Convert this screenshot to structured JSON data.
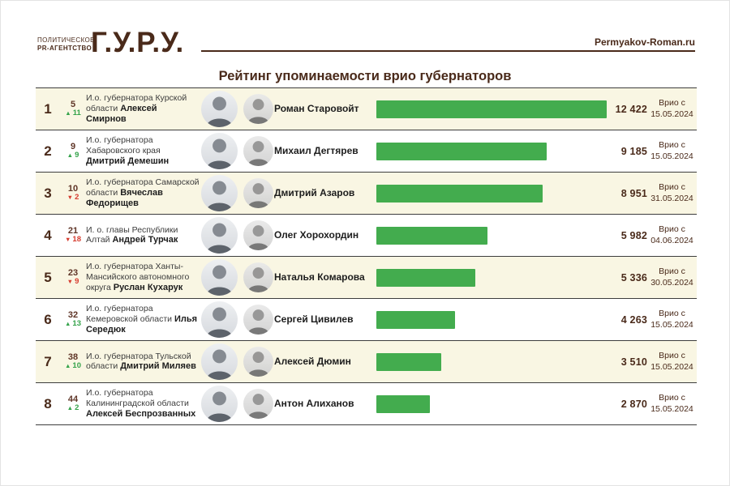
{
  "header": {
    "agency_line1": "ПОЛИТИЧЕСКОЕ",
    "agency_line2": "PR-АГЕНТСТВО",
    "logo_text": "Г.У.Р.У.",
    "site": "Permyakov-Roman.ru"
  },
  "title": "Рейтинг упоминаемости врио губернаторов",
  "colors": {
    "brand_brown": "#4a2a1a",
    "bar_green": "#43ac4e",
    "up_green": "#35a34b",
    "down_red": "#d63c2f",
    "row_alt_yellow": "#f9f6e3",
    "divider": "#3d3d3d"
  },
  "table": {
    "max_value": 12422,
    "date_label": "Врио с",
    "rows": [
      {
        "rank": "1",
        "prev_pos": "5",
        "direction": "up",
        "delta": "11",
        "role": "И.о. губернатора Курской области",
        "name": "Алексей Смирнов",
        "person": "Роман Старовойт",
        "value": 12422,
        "value_label": "12 422",
        "vrio_date": "15.05.2024"
      },
      {
        "rank": "2",
        "prev_pos": "9",
        "direction": "up",
        "delta": "9",
        "role": "И.о. губернатора Хабаровского края",
        "name": "Дмитрий Демешин",
        "person": "Михаил Дегтярев",
        "value": 9185,
        "value_label": "9 185",
        "vrio_date": "15.05.2024"
      },
      {
        "rank": "3",
        "prev_pos": "10",
        "direction": "down",
        "delta": "2",
        "role": "И.о. губернатора Самарской области",
        "name": "Вячеслав Федорищев",
        "person": "Дмитрий Азаров",
        "value": 8951,
        "value_label": "8 951",
        "vrio_date": "31.05.2024"
      },
      {
        "rank": "4",
        "prev_pos": "21",
        "direction": "down",
        "delta": "18",
        "role": "И. о. главы Республики Алтай",
        "name": "Андрей Турчак",
        "person": "Олег Хорохордин",
        "value": 5982,
        "value_label": "5 982",
        "vrio_date": "04.06.2024"
      },
      {
        "rank": "5",
        "prev_pos": "23",
        "direction": "down",
        "delta": "9",
        "role": "И.о. губернатора Ханты-Мансийского автономного округа",
        "name": "Руслан Кухарук",
        "person": "Наталья Комарова",
        "value": 5336,
        "value_label": "5 336",
        "vrio_date": "30.05.2024"
      },
      {
        "rank": "6",
        "prev_pos": "32",
        "direction": "up",
        "delta": "13",
        "role": "И.о. губернатора Кемеровской области",
        "name": "Илья Середюк",
        "person": "Сергей Цивилев",
        "value": 4263,
        "value_label": "4 263",
        "vrio_date": "15.05.2024"
      },
      {
        "rank": "7",
        "prev_pos": "38",
        "direction": "up",
        "delta": "10",
        "role": "И.о. губернатора Тульской области",
        "name": "Дмитрий Миляев",
        "person": "Алексей Дюмин",
        "value": 3510,
        "value_label": "3 510",
        "vrio_date": "15.05.2024"
      },
      {
        "rank": "8",
        "prev_pos": "44",
        "direction": "up",
        "delta": "2",
        "role": "И.о. губернатора Калининградской области",
        "name": "Алексей Беспрозванных",
        "person": "Антон Алиханов",
        "value": 2870,
        "value_label": "2 870",
        "vrio_date": "15.05.2024"
      }
    ]
  },
  "chart_data": {
    "type": "bar",
    "orientation": "horizontal",
    "title": "Рейтинг упоминаемости врио губернаторов",
    "categories": [
      "Роман Старовойт",
      "Михаил Дегтярев",
      "Дмитрий Азаров",
      "Олег Хорохордин",
      "Наталья Комарова",
      "Сергей Цивилев",
      "Алексей Дюмин",
      "Антон Алиханов"
    ],
    "values": [
      12422,
      9185,
      8951,
      5982,
      5336,
      4263,
      3510,
      2870
    ],
    "value_labels": [
      "12 422",
      "9 185",
      "8 951",
      "5 982",
      "5 336",
      "4 263",
      "3 510",
      "2 870"
    ],
    "xlim": [
      0,
      12422
    ],
    "bar_color": "#43ac4e",
    "grid": false,
    "legend": false
  }
}
